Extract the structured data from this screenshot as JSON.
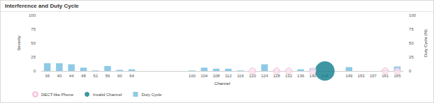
{
  "chart_data": {
    "type": "bar",
    "title": "Interference and Duty Cycle",
    "x_label": "Channel",
    "y_label": "Severity",
    "y2_label": "Duty Cycle (%)",
    "categories": [
      "36",
      "40",
      "44",
      "48",
      "52",
      "56",
      "60",
      "64",
      null,
      null,
      null,
      null,
      "100",
      "104",
      "108",
      "112",
      "116",
      "120",
      "124",
      "128",
      "132",
      "136",
      "140",
      "144",
      null,
      "149",
      "153",
      "157",
      "161",
      "165"
    ],
    "series": [
      {
        "name": "DECT-like Phone",
        "type": "scatter",
        "marker": "circle",
        "color": "#f2b6d6",
        "values": [
          null,
          null,
          null,
          null,
          null,
          null,
          null,
          null,
          null,
          null,
          null,
          null,
          null,
          null,
          null,
          null,
          null,
          0,
          null,
          0,
          0,
          null,
          0,
          null,
          null,
          null,
          null,
          null,
          0,
          0
        ]
      },
      {
        "name": "Invalid Channel",
        "type": "scatter",
        "marker": "circle",
        "color": "#0e7c8c",
        "values": [
          null,
          null,
          null,
          null,
          null,
          null,
          null,
          null,
          null,
          null,
          null,
          null,
          null,
          null,
          null,
          null,
          null,
          null,
          null,
          null,
          null,
          null,
          null,
          0,
          null,
          null,
          null,
          null,
          null,
          null
        ]
      },
      {
        "name": "Duty Cycle",
        "type": "bar",
        "axis": "y2",
        "color": "#8ecae6",
        "values": [
          14,
          14,
          12,
          6,
          1,
          9,
          2,
          3,
          null,
          null,
          null,
          null,
          1,
          6,
          4,
          4,
          1,
          0,
          12,
          1,
          1,
          3,
          5,
          0,
          null,
          7,
          0,
          0,
          2,
          8
        ]
      }
    ],
    "ylim": [
      0,
      100
    ],
    "yticks": [
      0,
      25,
      50,
      75,
      100
    ],
    "y2lim": [
      0,
      100
    ],
    "y2ticks": [
      0,
      25,
      50,
      75,
      100
    ],
    "grid": false,
    "legend": "bottom"
  }
}
